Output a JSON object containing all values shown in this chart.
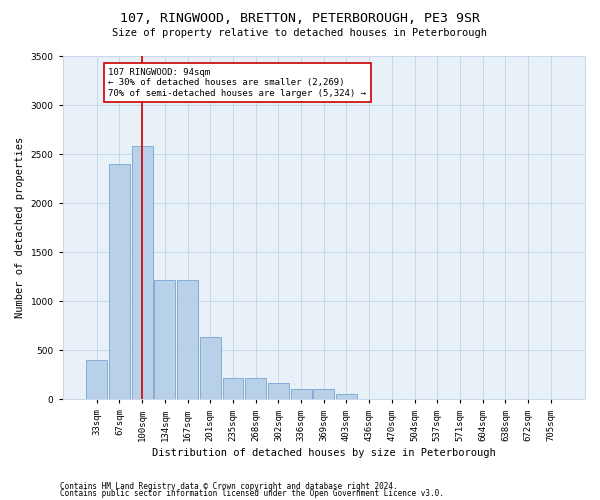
{
  "title": "107, RINGWOOD, BRETTON, PETERBOROUGH, PE3 9SR",
  "subtitle": "Size of property relative to detached houses in Peterborough",
  "xlabel": "Distribution of detached houses by size in Peterborough",
  "ylabel": "Number of detached properties",
  "footer1": "Contains HM Land Registry data © Crown copyright and database right 2024.",
  "footer2": "Contains public sector information licensed under the Open Government Licence v3.0.",
  "bar_color": "#b8d0e8",
  "bar_edge_color": "#6699cc",
  "grid_color": "#c8d8ea",
  "background_color": "#e8f0f8",
  "categories": [
    "33sqm",
    "67sqm",
    "100sqm",
    "134sqm",
    "167sqm",
    "201sqm",
    "235sqm",
    "268sqm",
    "302sqm",
    "336sqm",
    "369sqm",
    "403sqm",
    "436sqm",
    "470sqm",
    "504sqm",
    "537sqm",
    "571sqm",
    "604sqm",
    "638sqm",
    "672sqm",
    "705sqm"
  ],
  "values": [
    400,
    2400,
    2580,
    1220,
    1220,
    640,
    220,
    220,
    170,
    100,
    100,
    55,
    0,
    0,
    0,
    0,
    0,
    0,
    0,
    0,
    0
  ],
  "ylim": [
    0,
    3500
  ],
  "yticks": [
    0,
    500,
    1000,
    1500,
    2000,
    2500,
    3000,
    3500
  ],
  "property_line_x": 2.0,
  "property_line_color": "#cc0000",
  "annotation_text": "107 RINGWOOD: 94sqm\n← 30% of detached houses are smaller (2,269)\n70% of semi-detached houses are larger (5,324) →",
  "annotation_box_color": "#ffffff",
  "annotation_box_edge": "#cc0000",
  "title_fontsize": 9.5,
  "subtitle_fontsize": 7.5,
  "tick_fontsize": 6.5,
  "ylabel_fontsize": 7.5,
  "xlabel_fontsize": 7.5,
  "annot_fontsize": 6.5,
  "footer_fontsize": 5.5
}
